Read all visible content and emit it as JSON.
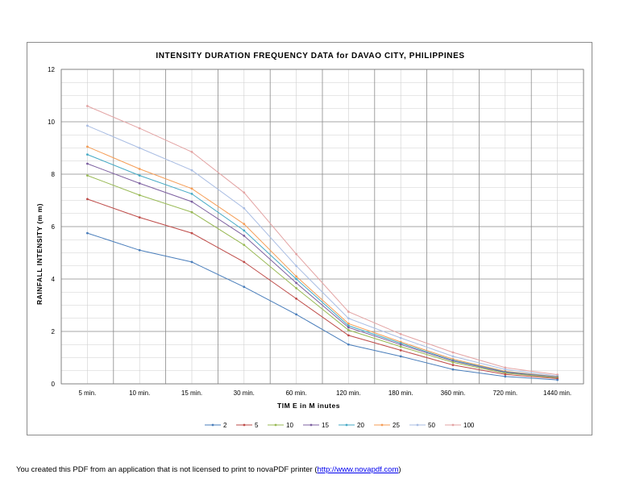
{
  "chart_data": {
    "type": "line",
    "title": "INTENSITY DURATION FREQUENCY DATA for DAVAO CITY, PHILIPPINES",
    "xlabel": "TIM E in M inutes",
    "ylabel": "RAINFALL INTENSITY (m m)",
    "categories": [
      "5 min.",
      "10 min.",
      "15 min.",
      "30 min.",
      "60 min.",
      "120 min.",
      "180 min.",
      "360 min.",
      "720 min.",
      "1440 min."
    ],
    "ylim": [
      0,
      12
    ],
    "yticks": [
      0,
      2,
      4,
      6,
      8,
      10,
      12
    ],
    "grid": true,
    "legend_position": "bottom",
    "series": [
      {
        "name": "2",
        "color": "#4a7ebb",
        "values": [
          5.75,
          5.1,
          4.65,
          3.7,
          2.65,
          1.5,
          1.05,
          0.55,
          0.28,
          0.15
        ]
      },
      {
        "name": "5",
        "color": "#be4b48",
        "values": [
          7.05,
          6.35,
          5.75,
          4.65,
          3.25,
          1.85,
          1.28,
          0.72,
          0.36,
          0.2
        ]
      },
      {
        "name": "10",
        "color": "#98b954",
        "values": [
          7.95,
          7.2,
          6.55,
          5.3,
          3.65,
          2.05,
          1.42,
          0.82,
          0.41,
          0.23
        ]
      },
      {
        "name": "15",
        "color": "#7d60a0",
        "values": [
          8.4,
          7.65,
          6.95,
          5.65,
          3.85,
          2.15,
          1.5,
          0.87,
          0.44,
          0.25
        ]
      },
      {
        "name": "20",
        "color": "#46aac5",
        "values": [
          8.75,
          7.95,
          7.25,
          5.85,
          4.0,
          2.22,
          1.55,
          0.9,
          0.46,
          0.26
        ]
      },
      {
        "name": "25",
        "color": "#f59d56",
        "values": [
          9.05,
          8.2,
          7.45,
          6.1,
          4.1,
          2.3,
          1.6,
          0.94,
          0.48,
          0.27
        ]
      },
      {
        "name": "50",
        "color": "#a9bde3",
        "values": [
          9.85,
          9.0,
          8.15,
          6.7,
          4.5,
          2.5,
          1.75,
          1.05,
          0.55,
          0.3
        ]
      },
      {
        "name": "100",
        "color": "#e3a3a3",
        "values": [
          10.6,
          9.75,
          8.85,
          7.3,
          4.95,
          2.75,
          1.9,
          1.2,
          0.62,
          0.35
        ]
      }
    ]
  },
  "footer": {
    "text_before": "You created this PDF from an application that is not licensed to print to novaPDF printer (",
    "link": "http://www.novapdf.com",
    "text_after": ")"
  }
}
